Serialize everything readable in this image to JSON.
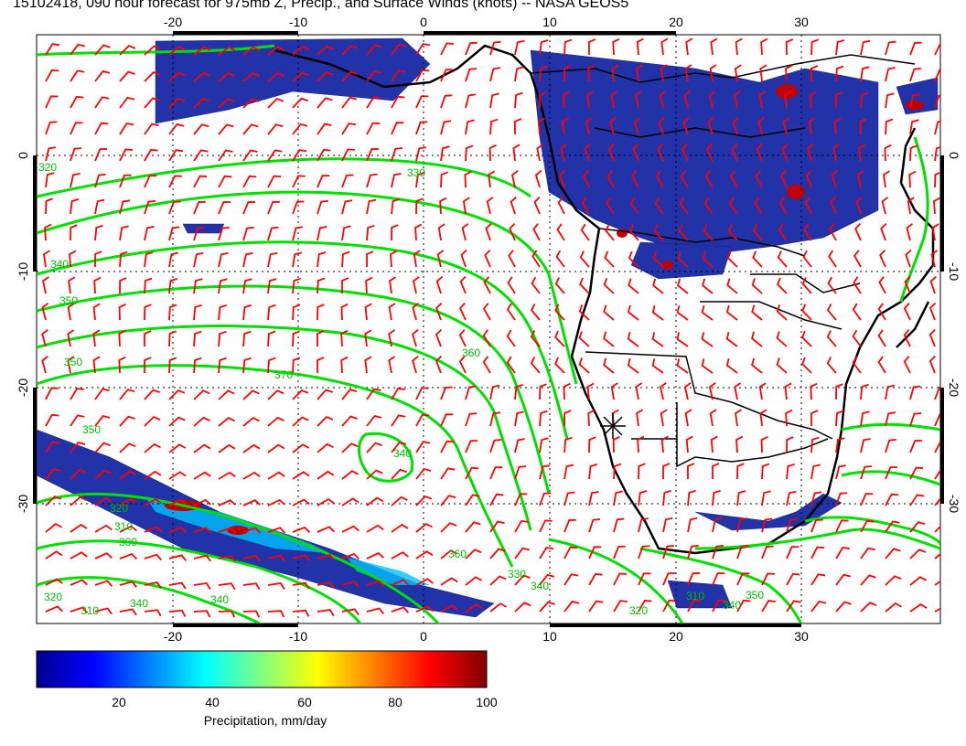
{
  "title": "15102418, 090 hour forecast for 975mb Z, Precip., and Surface Winds (knots) -- NASA GEOS5",
  "map": {
    "lon_labels_top": [
      "-20",
      "-10",
      "0",
      "10",
      "20",
      "30"
    ],
    "lon_labels_bottom": [
      "-20",
      "-10",
      "0",
      "10",
      "20",
      "30"
    ],
    "lat_labels_left": [
      "0",
      "-10",
      "-20",
      "-30"
    ],
    "lat_labels_right": [
      "0",
      "-10",
      "-20",
      "-30"
    ],
    "contour_labels": [
      "320",
      "330",
      "340",
      "350",
      "350",
      "360",
      "370",
      "340",
      "350",
      "320",
      "310",
      "300",
      "320",
      "310",
      "340",
      "340",
      "360",
      "330",
      "340",
      "320",
      "310",
      "340",
      "350"
    ],
    "colors": {
      "contour": "#00ff00",
      "wind_barb": "#ff0000",
      "coast": "#000000"
    }
  },
  "colorbar": {
    "ticks": [
      "20",
      "40",
      "60",
      "80",
      "100"
    ],
    "label": "Precipitation, mm/day",
    "colors": [
      "#00008f",
      "#0000ff",
      "#0080ff",
      "#00ffff",
      "#80ff80",
      "#ffff00",
      "#ff8000",
      "#ff0000",
      "#800000"
    ]
  }
}
